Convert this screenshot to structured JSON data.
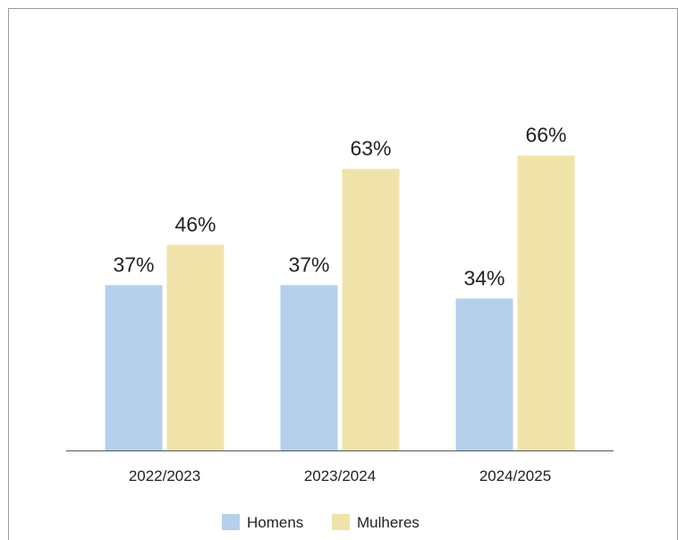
{
  "chart_data": {
    "type": "bar",
    "title": "",
    "xlabel": "",
    "ylabel": "",
    "categories": [
      "2022/2023",
      "2023/2024",
      "2024/2025"
    ],
    "series": [
      {
        "name": "Homens",
        "values": [
          37,
          37,
          34
        ],
        "labels": [
          "37%",
          "37%",
          "34%"
        ],
        "color": "#b4d0ea"
      },
      {
        "name": "Mulheres",
        "values": [
          46,
          63,
          66
        ],
        "labels": [
          "46%",
          "63%",
          "66%"
        ],
        "color": "#f0e3aa"
      }
    ],
    "ylim": [
      0,
      100
    ],
    "grid": false,
    "legend_position": "bottom"
  }
}
